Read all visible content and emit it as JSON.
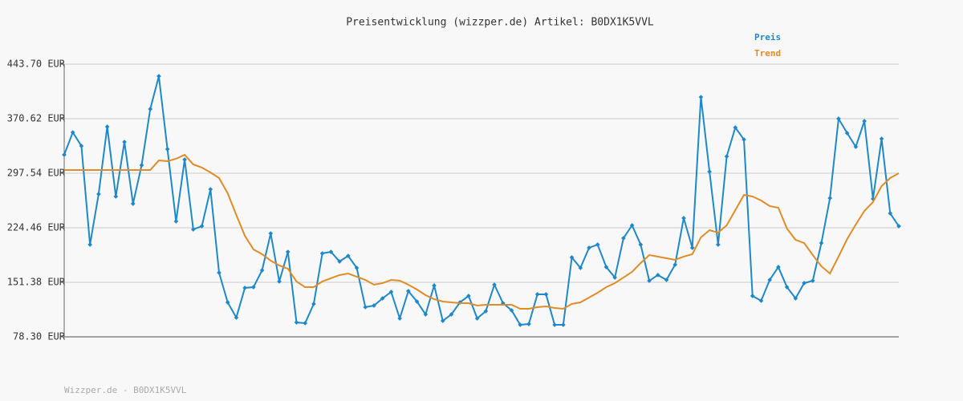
{
  "chart_data": {
    "type": "line",
    "title": "Preisentwicklung (wizzper.de) Artikel: B0DX1K5VVL",
    "footer": "Wizzper.de - B0DX1K5VVL",
    "ylim": [
      78.3,
      443.7
    ],
    "yticks": [
      {
        "value": 78.3,
        "label": "78.30 EUR"
      },
      {
        "value": 151.38,
        "label": "151.38 EUR"
      },
      {
        "value": 224.46,
        "label": "224.46 EUR"
      },
      {
        "value": 297.54,
        "label": "297.54 EUR"
      },
      {
        "value": 370.62,
        "label": "370.62 EUR"
      },
      {
        "value": 443.7,
        "label": "443.70 EUR"
      }
    ],
    "grid": true,
    "legend": "top-right",
    "series": [
      {
        "name": "Preis",
        "color": "#1f88c8",
        "markers": true,
        "values": [
          322.3,
          352.3,
          334.1,
          201.9,
          269.6,
          359.9,
          266.4,
          339.5,
          256.7,
          308.3,
          383.5,
          427.6,
          329.8,
          233.1,
          315.8,
          222.3,
          226.6,
          276.0,
          164.3,
          124.5,
          104.1,
          143.9,
          144.9,
          167.5,
          216.9,
          152.5,
          192.2,
          97.6,
          96.6,
          122.4,
          190.1,
          192.2,
          179.3,
          186.8,
          170.7,
          118.1,
          120.2,
          129.9,
          138.5,
          103.0,
          139.6,
          125.6,
          108.4,
          147.1,
          99.8,
          108.4,
          124.5,
          133.1,
          103.0,
          112.7,
          148.2,
          123.4,
          113.8,
          94.4,
          95.5,
          135.3,
          135.3,
          94.4,
          94.4,
          184.7,
          170.7,
          197.6,
          201.9,
          171.8,
          157.8,
          210.5,
          227.7,
          201.9,
          153.5,
          161.1,
          154.6,
          175.0,
          237.4,
          197.6,
          399.6,
          299.7,
          201.9,
          320.1,
          358.8,
          342.7,
          133.1,
          126.7,
          154.6,
          171.8,
          144.9,
          129.9,
          150.3,
          153.5,
          204.0,
          264.2,
          370.6,
          351.3,
          333.0,
          367.4,
          263.2,
          343.8,
          243.8,
          226.6
        ]
      },
      {
        "name": "Trend",
        "color": "#e08c28",
        "markers": false,
        "values": [
          301.8,
          301.8,
          301.8,
          301.8,
          301.8,
          301.8,
          301.8,
          301.8,
          301.8,
          301.8,
          301.8,
          314.7,
          313.7,
          316.9,
          322.3,
          309.4,
          305.1,
          298.6,
          291.1,
          270.7,
          241.7,
          213.7,
          195.4,
          189.0,
          180.4,
          174.0,
          169.6,
          152.5,
          144.9,
          144.9,
          152.5,
          156.8,
          161.1,
          163.2,
          158.9,
          154.6,
          148.2,
          150.3,
          154.6,
          153.5,
          148.2,
          141.7,
          134.2,
          128.8,
          125.6,
          124.5,
          123.4,
          123.4,
          120.2,
          121.3,
          121.3,
          121.3,
          121.3,
          115.9,
          115.9,
          118.1,
          119.1,
          117.0,
          115.9,
          122.4,
          124.5,
          131.0,
          137.4,
          144.9,
          150.3,
          157.8,
          165.4,
          177.2,
          187.9,
          185.8,
          183.6,
          181.5,
          185.8,
          189.0,
          211.6,
          221.2,
          218.0,
          227.7,
          248.1,
          268.5,
          266.4,
          261.0,
          253.5,
          251.3,
          223.4,
          208.3,
          204.0,
          187.9,
          172.9,
          163.2,
          185.8,
          209.4,
          228.8,
          247.0,
          258.9,
          280.3,
          291.1,
          297.5
        ]
      }
    ]
  }
}
